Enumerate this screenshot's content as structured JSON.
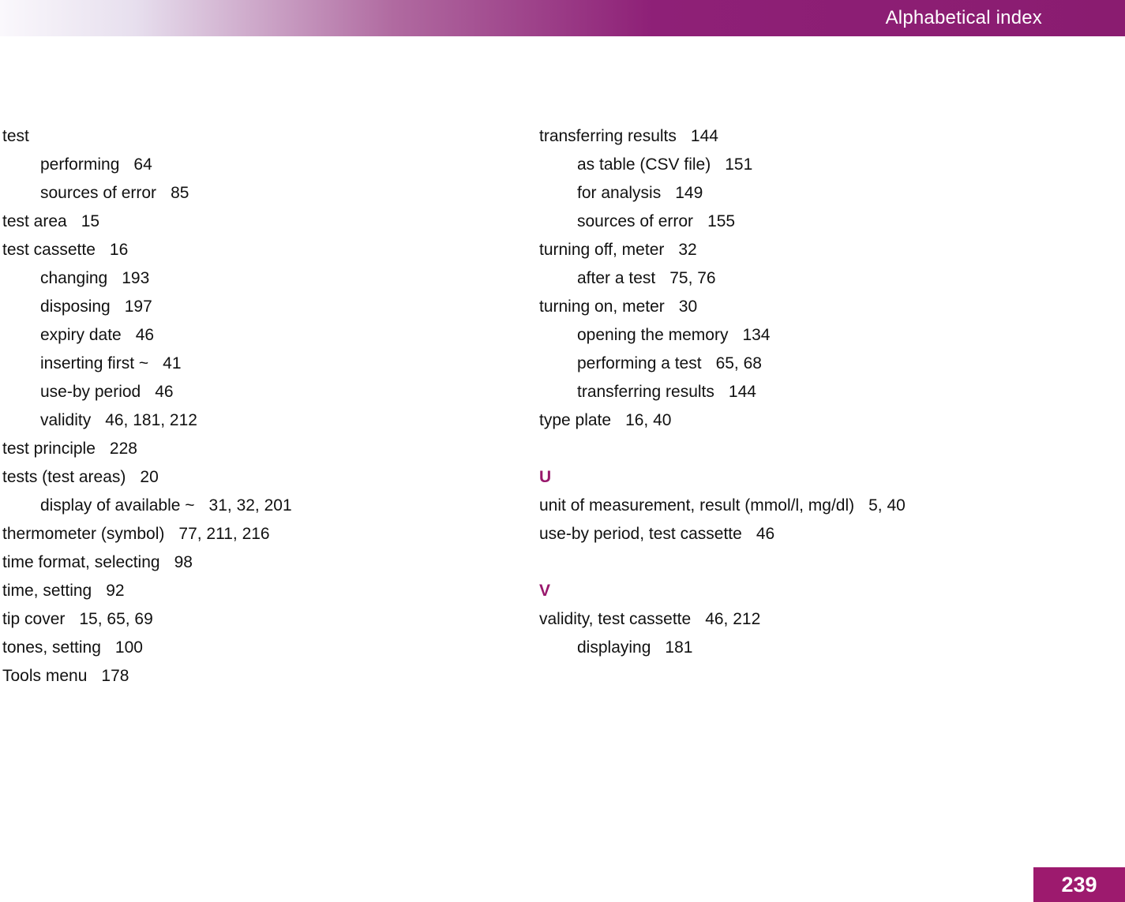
{
  "header": {
    "title": "Alphabetical index"
  },
  "footer": {
    "page_number": "239"
  },
  "colors": {
    "accent": "#98186C",
    "header_gradient_end": "#8A1C70",
    "page_number_background": "#9D1A6E"
  },
  "index": {
    "left": [
      {
        "term": "test",
        "pages": ""
      },
      {
        "term": "performing",
        "pages": "64",
        "indent": 1
      },
      {
        "term": "sources of error",
        "pages": "85",
        "indent": 1
      },
      {
        "term": "test area",
        "pages": "15"
      },
      {
        "term": "test cassette",
        "pages": "16"
      },
      {
        "term": "changing",
        "pages": "193",
        "indent": 1
      },
      {
        "term": "disposing",
        "pages": "197",
        "indent": 1
      },
      {
        "term": "expiry date",
        "pages": "46",
        "indent": 1
      },
      {
        "term": "inserting first ~",
        "pages": "41",
        "indent": 1
      },
      {
        "term": "use-by period",
        "pages": "46",
        "indent": 1
      },
      {
        "term": "validity",
        "pages": "46, 181, 212",
        "indent": 1
      },
      {
        "term": "test principle",
        "pages": "228"
      },
      {
        "term": "tests (test areas)",
        "pages": "20"
      },
      {
        "term": "display of available ~",
        "pages": "31, 32, 201",
        "indent": 1
      },
      {
        "term": "thermometer (symbol)",
        "pages": "77, 211, 216"
      },
      {
        "term": "time format, selecting",
        "pages": "98"
      },
      {
        "term": "time, setting",
        "pages": "92"
      },
      {
        "term": "tip cover",
        "pages": "15, 65, 69"
      },
      {
        "term": "tones, setting",
        "pages": "100"
      },
      {
        "term": "Tools menu",
        "pages": "178"
      }
    ],
    "right": [
      {
        "term": "transferring results",
        "pages": "144"
      },
      {
        "term": "as table (CSV file)",
        "pages": "151",
        "indent": 1
      },
      {
        "term": "for analysis",
        "pages": "149",
        "indent": 1
      },
      {
        "term": "sources of error",
        "pages": "155",
        "indent": 1
      },
      {
        "term": "turning off, meter",
        "pages": "32"
      },
      {
        "term": "after a test",
        "pages": "75, 76",
        "indent": 1
      },
      {
        "term": "turning on, meter",
        "pages": "30"
      },
      {
        "term": "opening the memory",
        "pages": "134",
        "indent": 1
      },
      {
        "term": "performing a test",
        "pages": "65, 68",
        "indent": 1
      },
      {
        "term": "transferring results",
        "pages": "144",
        "indent": 1
      },
      {
        "term": "type plate",
        "pages": "16, 40"
      },
      {
        "type": "spacer"
      },
      {
        "type": "letter",
        "term": "U",
        "pages": ""
      },
      {
        "term": "unit of measurement, result (mmol/l, mg/dl)",
        "pages": "5, 40"
      },
      {
        "term": "use-by period, test cassette",
        "pages": "46"
      },
      {
        "type": "spacer"
      },
      {
        "type": "letter",
        "term": "V",
        "pages": ""
      },
      {
        "term": "validity, test cassette",
        "pages": "46, 212"
      },
      {
        "term": "displaying",
        "pages": "181",
        "indent": 1
      }
    ]
  }
}
